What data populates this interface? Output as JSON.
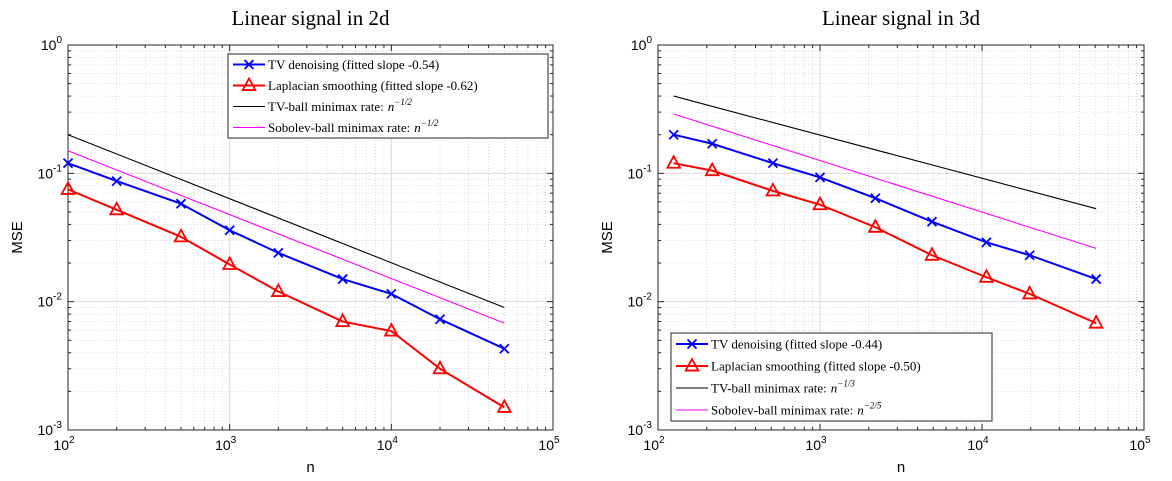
{
  "chart_data": [
    {
      "type": "line",
      "title": "Linear signal in 2d",
      "xlabel": "n",
      "ylabel": "MSE",
      "xscale": "log",
      "yscale": "log",
      "xlim": [
        100,
        100000
      ],
      "ylim": [
        0.001,
        1
      ],
      "grid": true,
      "legend_position": "top-right",
      "x_tick_labels": [
        {
          "base": "10",
          "exp": "2"
        },
        {
          "base": "10",
          "exp": "3"
        },
        {
          "base": "10",
          "exp": "4"
        },
        {
          "base": "10",
          "exp": "5"
        }
      ],
      "y_tick_labels": [
        {
          "base": "10",
          "exp": "-3"
        },
        {
          "base": "10",
          "exp": "-2"
        },
        {
          "base": "10",
          "exp": "-1"
        },
        {
          "base": "10",
          "exp": "0"
        }
      ],
      "series": [
        {
          "name": "TV denoising (fitted slope -0.54)",
          "color": "#0000ff",
          "marker": "x",
          "x": [
            100,
            200,
            500,
            1000,
            2000,
            5000,
            10000,
            20000,
            50000
          ],
          "y": [
            0.12,
            0.087,
            0.058,
            0.036,
            0.024,
            0.015,
            0.0115,
            0.0073,
            0.0043
          ]
        },
        {
          "name": "Laplacian smoothing (fitted slope -0.62)",
          "color": "#ff0000",
          "marker": "triangle",
          "x": [
            100,
            200,
            500,
            1000,
            2000,
            5000,
            10000,
            20000,
            50000
          ],
          "y": [
            0.075,
            0.052,
            0.032,
            0.0195,
            0.012,
            0.007,
            0.0059,
            0.003,
            0.0015
          ]
        },
        {
          "name": "TV-ball minimax rate:",
          "name_math": "n",
          "name_exp": "−1/2",
          "color": "#000000",
          "marker": "none",
          "x": [
            100,
            50000
          ],
          "y": [
            0.2,
            0.009
          ]
        },
        {
          "name": "Sobolev-ball minimax rate:",
          "name_math": "n",
          "name_exp": "−1/2",
          "color": "#ff00ff",
          "marker": "none",
          "x": [
            100,
            50000
          ],
          "y": [
            0.15,
            0.0068
          ]
        }
      ]
    },
    {
      "type": "line",
      "title": "Linear signal in 3d",
      "xlabel": "n",
      "ylabel": "MSE",
      "xscale": "log",
      "yscale": "log",
      "xlim": [
        100,
        100000
      ],
      "ylim": [
        0.001,
        1
      ],
      "grid": true,
      "legend_position": "bottom-left",
      "x_tick_labels": [
        {
          "base": "10",
          "exp": "2"
        },
        {
          "base": "10",
          "exp": "3"
        },
        {
          "base": "10",
          "exp": "4"
        },
        {
          "base": "10",
          "exp": "5"
        }
      ],
      "y_tick_labels": [
        {
          "base": "10",
          "exp": "-3"
        },
        {
          "base": "10",
          "exp": "-2"
        },
        {
          "base": "10",
          "exp": "-1"
        },
        {
          "base": "10",
          "exp": "0"
        }
      ],
      "series": [
        {
          "name": "TV denoising (fitted slope -0.44)",
          "color": "#0000ff",
          "marker": "x",
          "x": [
            125,
            216,
            512,
            1000,
            2197,
            4913,
            10648,
            19683,
            50653
          ],
          "y": [
            0.2,
            0.17,
            0.12,
            0.093,
            0.064,
            0.042,
            0.029,
            0.023,
            0.015
          ]
        },
        {
          "name": "Laplacian smoothing (fitted slope -0.50)",
          "color": "#ff0000",
          "marker": "triangle",
          "x": [
            125,
            216,
            512,
            1000,
            2197,
            4913,
            10648,
            19683,
            50653
          ],
          "y": [
            0.12,
            0.105,
            0.073,
            0.057,
            0.038,
            0.023,
            0.0155,
            0.0115,
            0.0068
          ]
        },
        {
          "name": "TV-ball minimax rate:",
          "name_math": "n",
          "name_exp": "−1/3",
          "color": "#000000",
          "marker": "none",
          "x": [
            125,
            50653
          ],
          "y": [
            0.4,
            0.053
          ]
        },
        {
          "name": "Sobolev-ball minimax rate:",
          "name_math": "n",
          "name_exp": "−2/5",
          "color": "#ff00ff",
          "marker": "none",
          "x": [
            125,
            50653
          ],
          "y": [
            0.29,
            0.026
          ]
        }
      ]
    }
  ]
}
